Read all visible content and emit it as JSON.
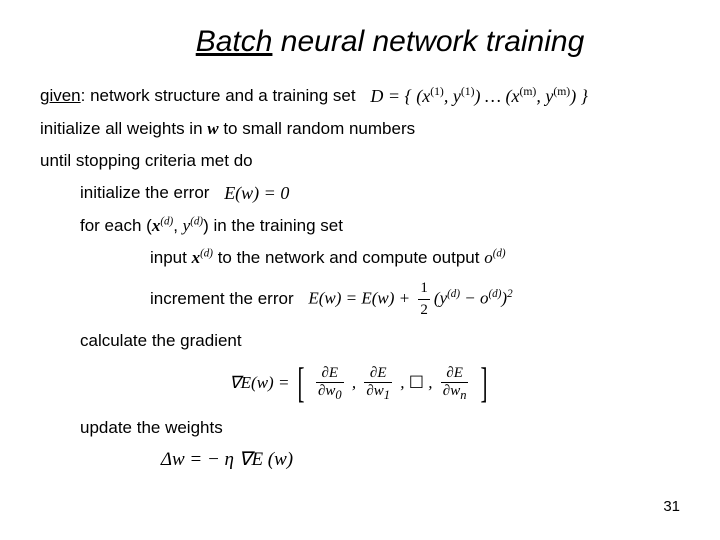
{
  "title": {
    "batch": "Batch",
    "rest": " neural network training"
  },
  "lines": {
    "given_label": "given",
    "given_rest": ": network structure and a training set",
    "D_expr": "D = { (x",
    "D_sup1": "(1)",
    "D_mid1": ", y",
    "D_sup1b": "(1)",
    "D_mid2": ") … (x",
    "D_supm": "(m)",
    "D_mid3": ", y",
    "D_supmb": "(m)",
    "D_end": ") }",
    "init_weights_a": "initialize all weights in ",
    "w_sym": "w",
    "init_weights_b": " to small random numbers",
    "until": "until stopping criteria met do",
    "init_err": "initialize the error",
    "E_zero": "E(w) = 0",
    "for_each_a": "for each (",
    "x_sym": "x",
    "sup_d": "(d)",
    "for_each_b": ", ",
    "y_sym": "y",
    "for_each_c": ") in the training set",
    "input_a": "input ",
    "input_b": " to the network and compute output ",
    "o_sym": "o",
    "increment": "increment the error",
    "E_update_a": "E(w) = E(w) + ",
    "half_num": "1",
    "half_den": "2",
    "E_update_b": "(y",
    "E_update_c": " − o",
    "E_update_d": ")",
    "sq": "2",
    "calc_grad": "calculate the gradient",
    "nabla": "∇E(w) =",
    "dE": "∂E",
    "dw0": "∂w",
    "sub0": "0",
    "sub1": "1",
    "subn": "n",
    "comma": ", ",
    "box": "☐",
    "update": "update the weights",
    "delta_w": "Δw = − η  ∇E (w)",
    "page": "31"
  },
  "colors": {
    "text": "#000000",
    "bg": "#ffffff"
  },
  "fontsize": {
    "title": 30,
    "body": 17,
    "pagenum": 15
  }
}
